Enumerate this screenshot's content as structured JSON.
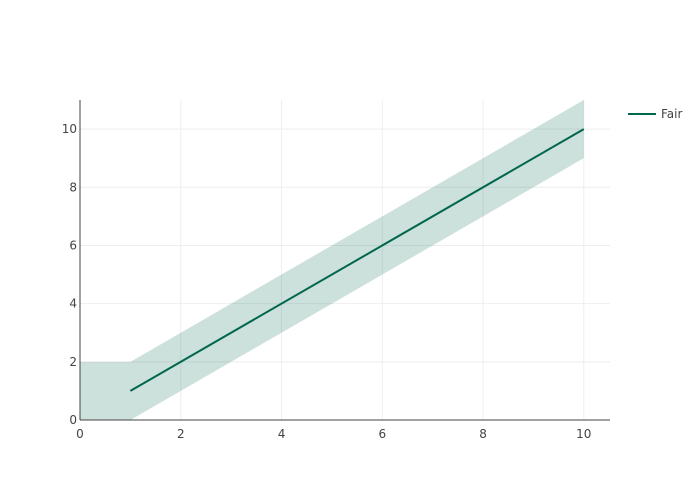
{
  "chart_data": {
    "type": "line",
    "title": "",
    "xlabel": "",
    "ylabel": "",
    "xlim": [
      0,
      10.52
    ],
    "ylim": [
      0,
      11
    ],
    "xticks": [
      0,
      2,
      4,
      6,
      8,
      10
    ],
    "yticks": [
      0,
      2,
      4,
      6,
      8,
      10
    ],
    "grid": true,
    "legend": "top-right",
    "series": [
      {
        "name": "Fair",
        "x": [
          1,
          10
        ],
        "y": [
          1,
          10
        ],
        "color": "#00664e",
        "band": {
          "x": [
            0,
            0,
            1,
            10,
            10,
            1
          ],
          "y": [
            0,
            2,
            2,
            11,
            9,
            0
          ],
          "color": "#00664e",
          "opacity": 0.2
        }
      }
    ]
  }
}
